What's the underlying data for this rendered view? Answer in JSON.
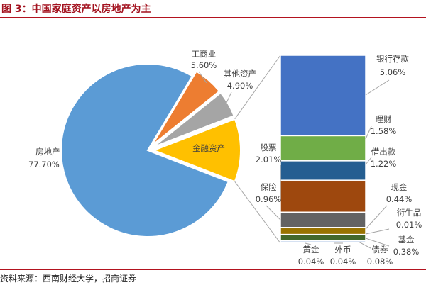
{
  "header": {
    "title": "图 3：中国家庭资产以房地产为主"
  },
  "footer": {
    "source": "资料来源：西南财经大学，招商证券"
  },
  "colors": {
    "title": "#a3121f",
    "rule": "#b3131f",
    "pie": [
      "#5b9bd5",
      "#ed7d31",
      "#a5a5a5",
      "#ffc000"
    ],
    "bar": [
      "#4472c4",
      "#70ad47",
      "#255e91",
      "#9e480e",
      "#636363",
      "#997300",
      "#264478",
      "#43682b",
      "#698ed0",
      "#f1975a"
    ]
  },
  "chart_data": [
    {
      "type": "pie",
      "categories": [
        "房地产",
        "工商业",
        "其他资产",
        "金融资产"
      ],
      "values": [
        77.7,
        5.6,
        4.9,
        11.8
      ],
      "value_labels": [
        "77.70%",
        "5.60%",
        "4.90%",
        ""
      ],
      "legend": "none"
    },
    {
      "type": "bar",
      "stacked": true,
      "categories": [
        "银行存款",
        "理财",
        "借出款",
        "股票",
        "保险",
        "现金",
        "衍生品",
        "基金",
        "债券",
        "外币",
        "黄金"
      ],
      "values": [
        5.06,
        1.58,
        1.22,
        2.01,
        0.96,
        0.44,
        0.01,
        0.38,
        0.08,
        0.04,
        0.04
      ],
      "value_labels": [
        "5.06%",
        "1.58%",
        "1.22%",
        "2.01%",
        "0.96%",
        "0.44%",
        "0.01%",
        "0.38%",
        "0.08%",
        "0.04%",
        "0.04%"
      ],
      "legend": "none"
    }
  ]
}
